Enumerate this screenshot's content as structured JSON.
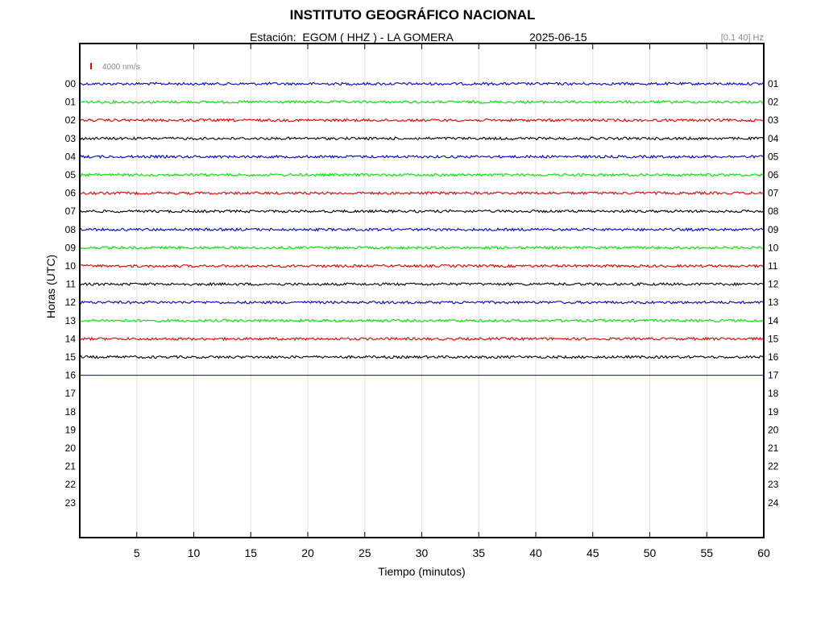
{
  "header": {
    "title": "INSTITUTO GEOGRÁFICO NACIONAL",
    "station_label": "Estación:  EGOM ( HHZ ) - LA GOMERA",
    "date": "2025-06-15",
    "filter": "[0.1 40] Hz"
  },
  "chart_data": {
    "type": "line",
    "xlabel": "Tiempo (minutos)",
    "ylabel": "Horas (UTC)",
    "xlim": [
      0,
      60
    ],
    "x_ticks": [
      5,
      10,
      15,
      20,
      25,
      30,
      35,
      40,
      45,
      50,
      55,
      60
    ],
    "left_hour_labels": [
      "00",
      "01",
      "02",
      "03",
      "04",
      "05",
      "06",
      "07",
      "08",
      "09",
      "10",
      "11",
      "12",
      "13",
      "14",
      "15",
      "16",
      "17",
      "18",
      "19",
      "20",
      "21",
      "22",
      "23"
    ],
    "right_hour_labels": [
      "01",
      "02",
      "03",
      "04",
      "05",
      "06",
      "07",
      "08",
      "09",
      "10",
      "11",
      "12",
      "13",
      "14",
      "15",
      "16",
      "17",
      "18",
      "19",
      "20",
      "21",
      "22",
      "23",
      "24"
    ],
    "scale_label": "4000 nm/s",
    "scale_color": "#ff0000",
    "grid": "vertical",
    "trace_colors": [
      "#0000cc",
      "#00dd00",
      "#dd0000",
      "#000000"
    ],
    "traces": [
      {
        "hour": 0,
        "start_min": 0,
        "end_min": 60
      },
      {
        "hour": 1,
        "start_min": 0,
        "end_min": 60
      },
      {
        "hour": 2,
        "start_min": 0,
        "end_min": 60
      },
      {
        "hour": 3,
        "start_min": 0,
        "end_min": 60
      },
      {
        "hour": 4,
        "start_min": 0,
        "end_min": 60
      },
      {
        "hour": 5,
        "start_min": 0,
        "end_min": 60
      },
      {
        "hour": 6,
        "start_min": 0,
        "end_min": 60
      },
      {
        "hour": 7,
        "start_min": 0,
        "end_min": 60
      },
      {
        "hour": 8,
        "start_min": 0,
        "end_min": 60
      },
      {
        "hour": 9,
        "start_min": 0,
        "end_min": 60
      },
      {
        "hour": 10,
        "start_min": 0,
        "end_min": 60
      },
      {
        "hour": 11,
        "start_min": 0,
        "end_min": 60
      },
      {
        "hour": 12,
        "start_min": 0,
        "end_min": 60
      },
      {
        "hour": 13,
        "start_min": 0,
        "end_min": 60
      },
      {
        "hour": 14,
        "start_min": 0,
        "end_min": 60
      },
      {
        "hour": 15,
        "start_min": 0,
        "end_min": 60
      },
      {
        "hour": 16,
        "start_min": 0,
        "end_min": 60
      }
    ]
  }
}
